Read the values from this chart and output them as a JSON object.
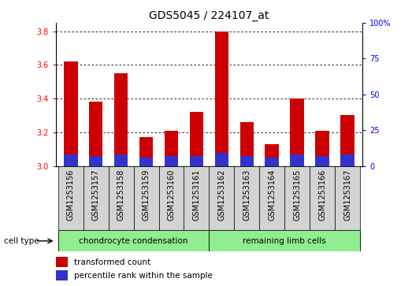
{
  "title": "GDS5045 / 224107_at",
  "samples": [
    "GSM1253156",
    "GSM1253157",
    "GSM1253158",
    "GSM1253159",
    "GSM1253160",
    "GSM1253161",
    "GSM1253162",
    "GSM1253163",
    "GSM1253164",
    "GSM1253165",
    "GSM1253166",
    "GSM1253167"
  ],
  "transformed_count": [
    3.62,
    3.38,
    3.55,
    3.17,
    3.21,
    3.32,
    3.8,
    3.26,
    3.13,
    3.4,
    3.21,
    3.3
  ],
  "percentile_rank_pct": [
    8.0,
    7.0,
    8.0,
    6.0,
    7.0,
    7.0,
    9.0,
    7.0,
    6.0,
    8.0,
    7.0,
    8.0
  ],
  "bar_bottom": 3.0,
  "ylim_left": [
    3.0,
    3.85
  ],
  "ylim_right": [
    0,
    100
  ],
  "yticks_left": [
    3.0,
    3.2,
    3.4,
    3.6,
    3.8
  ],
  "yticks_right": [
    0,
    25,
    50,
    75,
    100
  ],
  "bar_color_red": "#cc0000",
  "bar_color_blue": "#3333cc",
  "bar_width": 0.55,
  "group1_label": "chondrocyte condensation",
  "group2_label": "remaining limb cells",
  "group1_indices": [
    0,
    1,
    2,
    3,
    4,
    5
  ],
  "group2_indices": [
    6,
    7,
    8,
    9,
    10,
    11
  ],
  "group_color": "#90ee90",
  "cell_type_label": "cell type",
  "legend_red": "transformed count",
  "legend_blue": "percentile rank within the sample",
  "tick_gray": "#d3d3d3",
  "title_fontsize": 10,
  "tick_fontsize": 7,
  "label_fontsize": 8
}
